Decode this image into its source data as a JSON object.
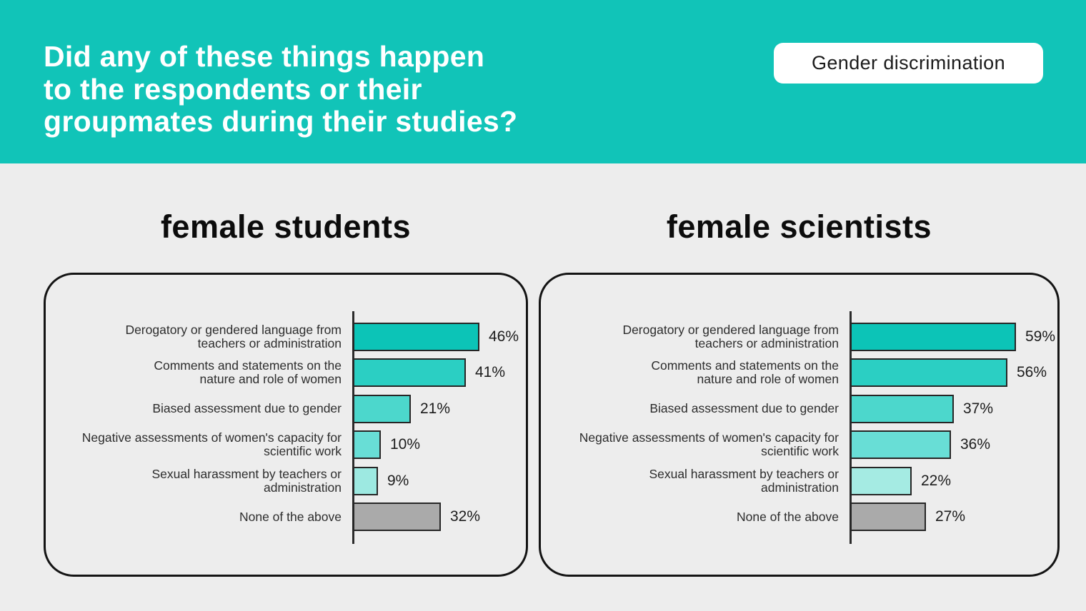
{
  "page": {
    "background": "#ededed",
    "accent": "#11c4b8",
    "card_border": "#141414"
  },
  "header": {
    "title_lines": [
      "Did any of these things happen",
      "to the respondents or their",
      "groupmates during their studies?"
    ],
    "badge_label": "Gender discrimination"
  },
  "chart_data": [
    {
      "type": "bar",
      "orientation": "horizontal",
      "title": "female students",
      "unit": "%",
      "xlim": [
        0,
        100
      ],
      "grid": false,
      "legend": false,
      "categories": [
        "Derogatory or gendered language from teachers or administration",
        "Comments and statements on the nature and role of women",
        "Biased assessment due to gender",
        "Negative assessments of women's capacity for scientific work",
        "Sexual harassment by teachers or administration",
        "None of the above"
      ],
      "category_lines": [
        [
          "Derogatory or gendered language from",
          "teachers or administration"
        ],
        [
          "Comments and statements on the",
          "nature and role of women"
        ],
        [
          "Biased assessment due to gender"
        ],
        [
          "Negative assessments of women's capacity for",
          "scientific work"
        ],
        [
          "Sexual harassment by teachers or",
          "administration"
        ],
        [
          "None of the above"
        ]
      ],
      "values": [
        46,
        41,
        21,
        10,
        9,
        32
      ],
      "value_labels": [
        "46%",
        "41%",
        "21%",
        "10%",
        "9%",
        "32%"
      ],
      "bar_colors": [
        "#0cc4b7",
        "#2bcfc3",
        "#4cd7cc",
        "#68ded6",
        "#9de9e1",
        "#aaaaaa"
      ]
    },
    {
      "type": "bar",
      "orientation": "horizontal",
      "title": "female scientists",
      "unit": "%",
      "xlim": [
        0,
        100
      ],
      "grid": false,
      "legend": false,
      "categories": [
        "Derogatory or gendered language from teachers or administration",
        "Comments and statements on the nature and role of women",
        "Biased assessment due to gender",
        "Negative assessments of women's capacity for scientific work",
        "Sexual harassment by teachers or administration",
        "None of the above"
      ],
      "category_lines": [
        [
          "Derogatory or gendered language from",
          "teachers or administration"
        ],
        [
          "Comments and statements on the",
          "nature and role of women"
        ],
        [
          "Biased assessment due to gender"
        ],
        [
          "Negative assessments of women's capacity for",
          "scientific work"
        ],
        [
          "Sexual harassment by teachers or",
          "administration"
        ],
        [
          "None of the above"
        ]
      ],
      "values": [
        59,
        56,
        37,
        36,
        22,
        27
      ],
      "value_labels": [
        "59%",
        "56%",
        "37%",
        "36%",
        "22%",
        "27%"
      ],
      "bar_colors": [
        "#0cc4b7",
        "#2bcfc3",
        "#4cd7cc",
        "#68ded6",
        "#a5ebe3",
        "#aaaaaa"
      ]
    }
  ]
}
